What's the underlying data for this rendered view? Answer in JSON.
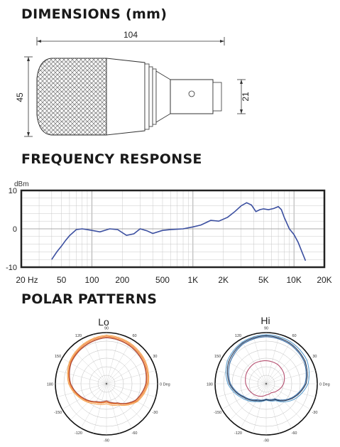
{
  "sections": {
    "dimensions": "DIMENSIONS (mm)",
    "frequency": "FREQUENCY RESPONSE",
    "polar": "POLAR PATTERNS"
  },
  "dimensions": {
    "length": "104",
    "diameter": "45",
    "connector_diameter": "21"
  },
  "chart_data": [
    {
      "type": "line",
      "title": "FREQUENCY RESPONSE",
      "ylabel": "dBm",
      "x_scale": "log",
      "xlim": [
        20,
        20000
      ],
      "ylim": [
        -10,
        10
      ],
      "y_ticks": [
        "10",
        "0",
        "-10"
      ],
      "x_ticks": [
        "20 Hz",
        "50",
        "100",
        "200",
        "500",
        "1K",
        "2K",
        "5K",
        "10K",
        "20K"
      ],
      "grid": true,
      "series": [
        {
          "color": "#3b4fa0",
          "x": [
            40,
            45,
            50,
            55,
            60,
            70,
            80,
            100,
            120,
            150,
            180,
            220,
            260,
            300,
            350,
            400,
            500,
            600,
            800,
            1000,
            1200,
            1500,
            1800,
            2200,
            2600,
            3000,
            3400,
            3800,
            4200,
            4600,
            5000,
            5600,
            6300,
            7000,
            7500,
            8000,
            9000,
            10000,
            11000,
            12000,
            13000
          ],
          "y": [
            -8,
            -6,
            -4.5,
            -3,
            -1.8,
            -0.2,
            0,
            -0.4,
            -0.8,
            0,
            -0.2,
            -1.7,
            -1.3,
            0,
            -0.5,
            -1.2,
            -0.4,
            -0.2,
            0,
            0.5,
            1,
            2.2,
            2,
            3,
            4.5,
            6,
            6.8,
            6.2,
            4.5,
            5,
            5.2,
            5,
            5.3,
            5.8,
            5,
            3,
            0,
            -1.5,
            -3.5,
            -6,
            -8.3
          ]
        }
      ]
    },
    {
      "type": "polar",
      "title": "Lo",
      "angle_labels": [
        "90",
        "60",
        "30",
        "0 Deg",
        "-30",
        "-60",
        "-90",
        "-120",
        "-150",
        "180",
        "150",
        "120"
      ],
      "series": [
        {
          "color": "#f0833a",
          "r": [
            0.93,
            0.9,
            0.86,
            0.8,
            0.68,
            0.45,
            0.36,
            0.42,
            0.56,
            0.72,
            0.82,
            0.88
          ]
        },
        {
          "color": "#f5a24d",
          "r": [
            0.95,
            0.92,
            0.88,
            0.82,
            0.7,
            0.48,
            0.39,
            0.45,
            0.58,
            0.74,
            0.84,
            0.9
          ]
        },
        {
          "color": "#e8792e",
          "r": [
            0.91,
            0.88,
            0.84,
            0.78,
            0.66,
            0.44,
            0.35,
            0.41,
            0.55,
            0.71,
            0.81,
            0.86
          ]
        },
        {
          "color": "#a84a42",
          "r": [
            0.9,
            0.87,
            0.83,
            0.77,
            0.65,
            0.43,
            0.33,
            0.4,
            0.54,
            0.7,
            0.8,
            0.85
          ]
        }
      ]
    },
    {
      "type": "polar",
      "title": "Hi",
      "angle_labels": [
        "90",
        "60",
        "30",
        "0 Deg",
        "-30",
        "-60",
        "-90",
        "-120",
        "-150",
        "180",
        "150",
        "120"
      ],
      "series": [
        {
          "color": "#5e9fd0",
          "r": [
            0.96,
            0.95,
            0.92,
            0.82,
            0.62,
            0.38,
            0.32,
            0.4,
            0.55,
            0.75,
            0.88,
            0.94
          ]
        },
        {
          "color": "#3a6fa8",
          "r": [
            0.92,
            0.9,
            0.86,
            0.76,
            0.56,
            0.34,
            0.3,
            0.36,
            0.5,
            0.7,
            0.82,
            0.9
          ]
        },
        {
          "color": "#2b3a55",
          "r": [
            0.94,
            0.92,
            0.88,
            0.78,
            0.58,
            0.36,
            0.31,
            0.38,
            0.52,
            0.72,
            0.85,
            0.92
          ]
        },
        {
          "color": "#b55070",
          "r": [
            0.45,
            0.44,
            0.4,
            0.34,
            0.26,
            0.2,
            0.22,
            0.28,
            0.34,
            0.4,
            0.44,
            0.46
          ]
        }
      ]
    }
  ]
}
